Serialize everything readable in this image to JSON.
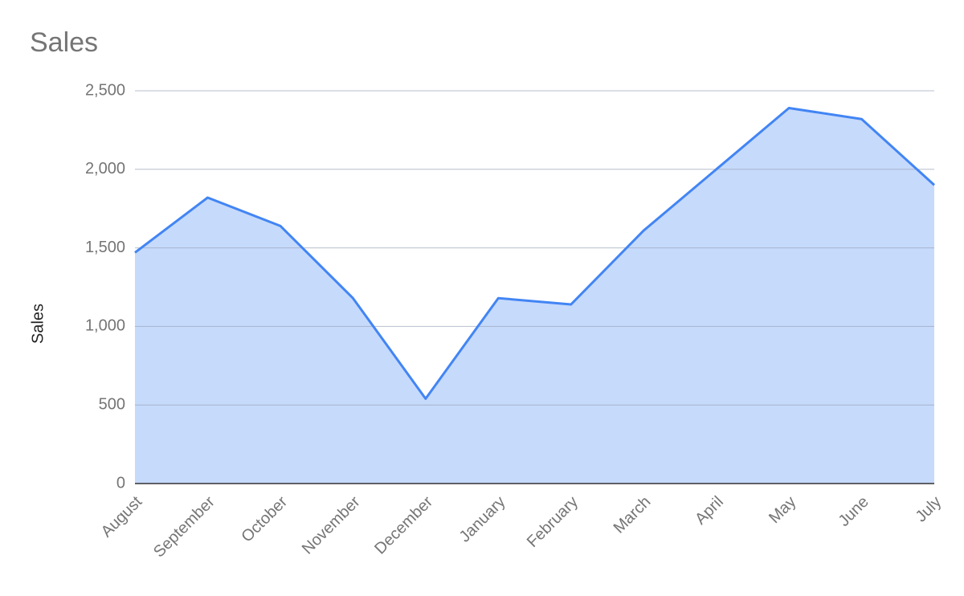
{
  "chart_data": {
    "type": "area",
    "title": "Sales",
    "y_label": "Sales",
    "categories": [
      "August",
      "September",
      "October",
      "November",
      "December",
      "January",
      "February",
      "March",
      "April",
      "May",
      "June",
      "July"
    ],
    "series": [
      {
        "name": "Sales",
        "color": "#4285f4",
        "values": [
          1470,
          1820,
          1640,
          1180,
          540,
          1180,
          1140,
          1610,
          2000,
          2390,
          2320,
          1900
        ]
      }
    ],
    "ylim": [
      0,
      2500
    ],
    "yticks": [
      0,
      500,
      {
        "value": 1000,
        "label": "1,000"
      },
      {
        "value": 1500,
        "label": "1,500"
      },
      {
        "value": 2000,
        "label": "2,000"
      },
      {
        "value": 2500,
        "label": "2,500"
      }
    ],
    "grid": true
  }
}
